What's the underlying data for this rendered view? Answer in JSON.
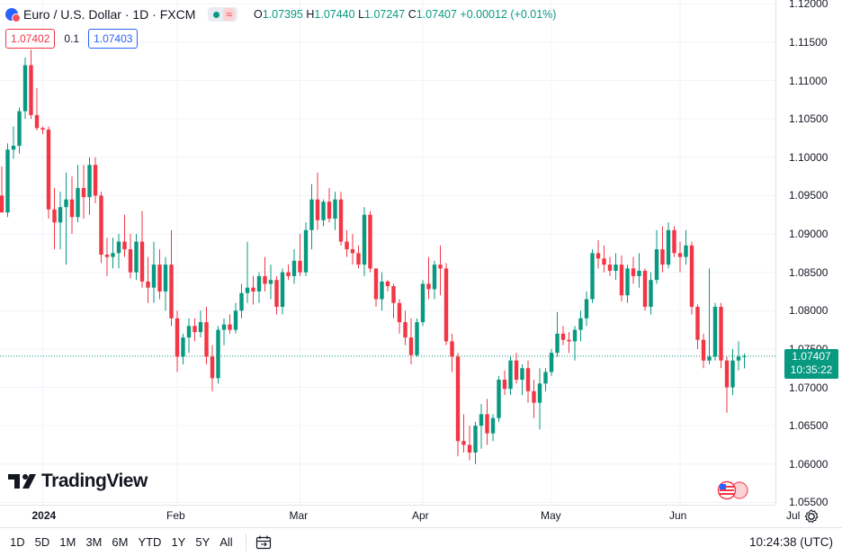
{
  "header": {
    "symbol_title": "Euro / U.S. Dollar · 1D · FXCM",
    "wave_icon": "≈",
    "ohlc": {
      "open_label": "O",
      "open": "1.07395",
      "high_label": "H",
      "high": "1.07440",
      "low_label": "L",
      "low": "1.07247",
      "close_label": "C",
      "close": "1.07407",
      "change": "+0.00012 (+0.01%)"
    }
  },
  "quote": {
    "bid": "1.07402",
    "spread": "0.1",
    "ask": "1.07403"
  },
  "watermark": {
    "brand": "TradingView"
  },
  "price_badge": {
    "price": "1.07407",
    "countdown": "10:35:22"
  },
  "toolbar": {
    "ranges": [
      "1D",
      "5D",
      "1M",
      "3M",
      "6M",
      "YTD",
      "1Y",
      "5Y",
      "All"
    ],
    "clock": "10:24:38 (UTC)"
  },
  "colors": {
    "up": "#089981",
    "down": "#f23645",
    "accent": "#2962ff"
  },
  "chart_data": {
    "type": "candlestick",
    "title": "Euro / U.S. Dollar · 1D · FXCM",
    "y_ticks": [
      "1.12000",
      "1.11500",
      "1.11000",
      "1.10500",
      "1.10000",
      "1.09500",
      "1.09000",
      "1.08500",
      "1.08000",
      "1.07500",
      "1.07000",
      "1.06500",
      "1.06000",
      "1.05500"
    ],
    "ylim": [
      1.0547,
      1.1205
    ],
    "x_labels": [
      {
        "label": "2024",
        "index": 7
      },
      {
        "label": "Feb",
        "index": 30
      },
      {
        "label": "Mar",
        "index": 51
      },
      {
        "label": "Apr",
        "index": 72
      },
      {
        "label": "May",
        "index": 94
      },
      {
        "label": "Jun",
        "index": 116
      },
      {
        "label": "Jul",
        "index": 136
      }
    ],
    "last_price": 1.07407,
    "candles": [
      [
        1.095,
        1.0988,
        1.093,
        1.0928
      ],
      [
        1.0928,
        1.1018,
        1.0922,
        1.101
      ],
      [
        1.101,
        1.104,
        1.0998,
        1.1015
      ],
      [
        1.1015,
        1.1065,
        1.1005,
        1.106
      ],
      [
        1.106,
        1.113,
        1.105,
        1.112
      ],
      [
        1.112,
        1.114,
        1.105,
        1.1055
      ],
      [
        1.1055,
        1.109,
        1.1035,
        1.1038
      ],
      [
        1.1038,
        1.104,
        1.103,
        1.1036
      ],
      [
        1.1036,
        1.104,
        1.092,
        1.0932
      ],
      [
        1.0932,
        1.096,
        1.088,
        1.0915
      ],
      [
        1.0915,
        1.0955,
        1.088,
        1.0935
      ],
      [
        1.0935,
        1.098,
        1.086,
        1.0945
      ],
      [
        1.0945,
        1.0975,
        1.09,
        1.0922
      ],
      [
        1.0922,
        1.099,
        1.0915,
        1.096
      ],
      [
        1.096,
        1.099,
        1.092,
        1.0948
      ],
      [
        1.0948,
        1.1,
        1.0925,
        1.099
      ],
      [
        1.099,
        1.1,
        1.094,
        1.095
      ],
      [
        1.095,
        1.0955,
        1.0862,
        1.0873
      ],
      [
        1.0873,
        1.0895,
        1.0845,
        1.087
      ],
      [
        1.087,
        1.0895,
        1.0855,
        1.0875
      ],
      [
        1.0875,
        1.09,
        1.0855,
        1.089
      ],
      [
        1.089,
        1.0925,
        1.087,
        1.088
      ],
      [
        1.088,
        1.09,
        1.0842,
        1.085
      ],
      [
        1.085,
        1.09,
        1.084,
        1.089
      ],
      [
        1.089,
        1.093,
        1.083,
        1.0838
      ],
      [
        1.0838,
        1.087,
        1.081,
        1.083
      ],
      [
        1.083,
        1.089,
        1.081,
        1.086
      ],
      [
        1.086,
        1.088,
        1.0815,
        1.0825
      ],
      [
        1.0825,
        1.087,
        1.08,
        1.086
      ],
      [
        1.086,
        1.0905,
        1.078,
        1.079
      ],
      [
        1.079,
        1.08,
        1.072,
        1.074
      ],
      [
        1.074,
        1.077,
        1.073,
        1.0765
      ],
      [
        1.0765,
        1.079,
        1.0745,
        1.078
      ],
      [
        1.078,
        1.079,
        1.076,
        1.0772
      ],
      [
        1.0772,
        1.08,
        1.0765,
        1.0785
      ],
      [
        1.0785,
        1.0805,
        1.073,
        1.074
      ],
      [
        1.074,
        1.0755,
        1.0695,
        1.0712
      ],
      [
        1.0712,
        1.078,
        1.0705,
        1.0775
      ],
      [
        1.0775,
        1.079,
        1.0755,
        1.0782
      ],
      [
        1.0782,
        1.0795,
        1.077,
        1.0775
      ],
      [
        1.0775,
        1.081,
        1.077,
        1.08
      ],
      [
        1.08,
        1.0835,
        1.079,
        1.0823
      ],
      [
        1.0823,
        1.089,
        1.081,
        1.083
      ],
      [
        1.083,
        1.0845,
        1.0808,
        1.0825
      ],
      [
        1.0825,
        1.085,
        1.081,
        1.0845
      ],
      [
        1.0845,
        1.087,
        1.0825,
        1.0835
      ],
      [
        1.0835,
        1.086,
        1.0815,
        1.084
      ],
      [
        1.084,
        1.0845,
        1.0795,
        1.0805
      ],
      [
        1.0805,
        1.0855,
        1.0795,
        1.085
      ],
      [
        1.085,
        1.086,
        1.084,
        1.0845
      ],
      [
        1.0845,
        1.088,
        1.0835,
        1.0865
      ],
      [
        1.0865,
        1.09,
        1.0845,
        1.085
      ],
      [
        1.085,
        1.0915,
        1.0845,
        1.0905
      ],
      [
        1.0905,
        1.0965,
        1.088,
        1.0945
      ],
      [
        1.0945,
        1.098,
        1.0905,
        1.0918
      ],
      [
        1.0918,
        1.0945,
        1.091,
        1.0942
      ],
      [
        1.0942,
        1.096,
        1.0915,
        1.092
      ],
      [
        1.092,
        1.0955,
        1.0905,
        1.0945
      ],
      [
        1.0945,
        1.0955,
        1.0885,
        1.089
      ],
      [
        1.089,
        1.0905,
        1.087,
        1.088
      ],
      [
        1.088,
        1.09,
        1.086,
        1.0875
      ],
      [
        1.0875,
        1.0885,
        1.0855,
        1.086
      ],
      [
        1.086,
        1.0935,
        1.0845,
        1.0925
      ],
      [
        1.0925,
        1.093,
        1.085,
        1.0855
      ],
      [
        1.0855,
        1.0855,
        1.0805,
        1.0815
      ],
      [
        1.0815,
        1.085,
        1.08,
        1.0838
      ],
      [
        1.0838,
        1.084,
        1.0825,
        1.0832
      ],
      [
        1.0832,
        1.0835,
        1.079,
        1.081
      ],
      [
        1.081,
        1.0815,
        1.077,
        1.0785
      ],
      [
        1.0785,
        1.08,
        1.0755,
        1.0765
      ],
      [
        1.0765,
        1.079,
        1.073,
        1.0742
      ],
      [
        1.0742,
        1.079,
        1.074,
        1.0785
      ],
      [
        1.0785,
        1.084,
        1.078,
        1.0835
      ],
      [
        1.0835,
        1.087,
        1.0815,
        1.0828
      ],
      [
        1.0828,
        1.0865,
        1.0815,
        1.086
      ],
      [
        1.086,
        1.0885,
        1.082,
        1.0855
      ],
      [
        1.0855,
        1.0862,
        1.0755,
        1.076
      ],
      [
        1.076,
        1.077,
        1.072,
        1.074
      ],
      [
        1.074,
        1.0745,
        1.061,
        1.063
      ],
      [
        1.063,
        1.0665,
        1.0615,
        1.0625
      ],
      [
        1.0625,
        1.065,
        1.0605,
        1.0615
      ],
      [
        1.0615,
        1.0655,
        1.06,
        1.065
      ],
      [
        1.065,
        1.0678,
        1.062,
        1.0665
      ],
      [
        1.0665,
        1.0685,
        1.0625,
        1.064
      ],
      [
        1.064,
        1.0665,
        1.063,
        1.066
      ],
      [
        1.066,
        1.0715,
        1.0655,
        1.071
      ],
      [
        1.071,
        1.0722,
        1.069,
        1.0698
      ],
      [
        1.0698,
        1.074,
        1.069,
        1.0735
      ],
      [
        1.0735,
        1.0745,
        1.0705,
        1.071
      ],
      [
        1.071,
        1.073,
        1.069,
        1.0725
      ],
      [
        1.0725,
        1.0735,
        1.068,
        1.0695
      ],
      [
        1.0695,
        1.071,
        1.066,
        1.068
      ],
      [
        1.068,
        1.0725,
        1.0645,
        1.0705
      ],
      [
        1.0705,
        1.0725,
        1.0695,
        1.072
      ],
      [
        1.072,
        1.075,
        1.0715,
        1.0745
      ],
      [
        1.0745,
        1.0798,
        1.074,
        1.077
      ],
      [
        1.077,
        1.078,
        1.0755,
        1.0762
      ],
      [
        1.0762,
        1.0772,
        1.0745,
        1.076
      ],
      [
        1.076,
        1.078,
        1.0735,
        1.0775
      ],
      [
        1.0775,
        1.08,
        1.076,
        1.079
      ],
      [
        1.079,
        1.0825,
        1.078,
        1.0815
      ],
      [
        1.0815,
        1.088,
        1.081,
        1.0875
      ],
      [
        1.0875,
        1.0892,
        1.0855,
        1.0868
      ],
      [
        1.0868,
        1.0885,
        1.085,
        1.086
      ],
      [
        1.086,
        1.087,
        1.0845,
        1.0852
      ],
      [
        1.0852,
        1.0875,
        1.084,
        1.086
      ],
      [
        1.086,
        1.0872,
        1.0812,
        1.082
      ],
      [
        1.082,
        1.086,
        1.081,
        1.0855
      ],
      [
        1.0855,
        1.087,
        1.0835,
        1.0845
      ],
      [
        1.0845,
        1.0875,
        1.083,
        1.0852
      ],
      [
        1.0852,
        1.0855,
        1.08,
        1.0805
      ],
      [
        1.0805,
        1.085,
        1.0795,
        1.084
      ],
      [
        1.084,
        1.0905,
        1.0835,
        1.088
      ],
      [
        1.088,
        1.091,
        1.085,
        1.086
      ],
      [
        1.086,
        1.0915,
        1.0855,
        1.0905
      ],
      [
        1.0905,
        1.091,
        1.087,
        1.0875
      ],
      [
        1.0875,
        1.089,
        1.085,
        1.087
      ],
      [
        1.087,
        1.0905,
        1.086,
        1.0885
      ],
      [
        1.0885,
        1.089,
        1.0795,
        1.0805
      ],
      [
        1.0805,
        1.0808,
        1.075,
        1.0762
      ],
      [
        1.0762,
        1.077,
        1.0725,
        1.0735
      ],
      [
        1.0735,
        1.0855,
        1.073,
        1.074
      ],
      [
        1.074,
        1.081,
        1.0735,
        1.0805
      ],
      [
        1.0805,
        1.081,
        1.0725,
        1.0735
      ],
      [
        1.0735,
        1.074,
        1.0667,
        1.07
      ],
      [
        1.07,
        1.075,
        1.069,
        1.0735
      ],
      [
        1.0735,
        1.076,
        1.0722,
        1.074
      ],
      [
        1.07395,
        1.0744,
        1.07247,
        1.07407
      ]
    ]
  }
}
